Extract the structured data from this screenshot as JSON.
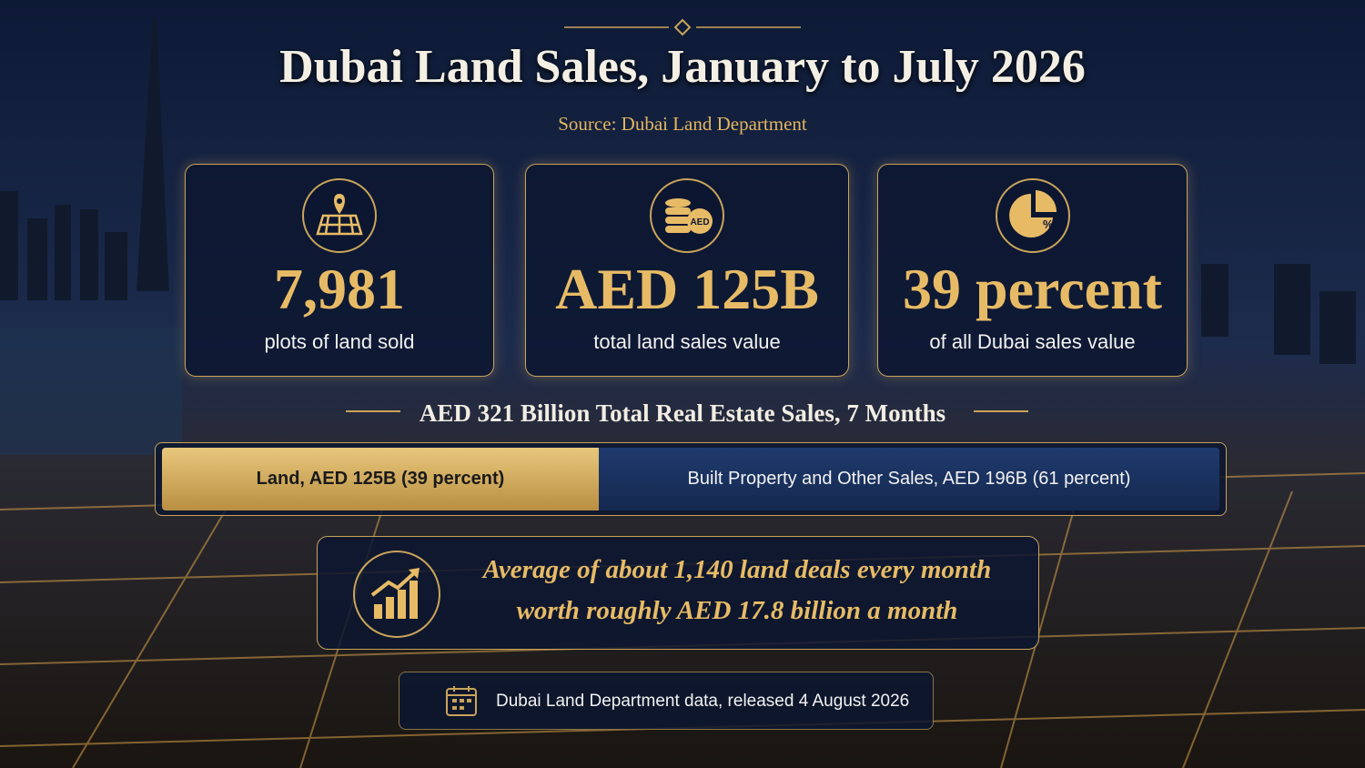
{
  "header": {
    "title": "Dubai Land Sales, January to July 2026",
    "source": "Source: Dubai Land Department"
  },
  "cards": [
    {
      "value": "7,981",
      "label": "plots of land sold"
    },
    {
      "value": "AED 125B",
      "label": "total land sales value"
    },
    {
      "value": "39 percent",
      "label": "of all Dubai sales value"
    }
  ],
  "breakdown": {
    "title": "AED 321 Billion Total Real Estate Sales, 7 Months",
    "segments": [
      "Land, AED 125B (39 percent)",
      "Built Property and Other Sales, AED 196B (61 percent)"
    ]
  },
  "average": {
    "lines": [
      "Average of about 1,140 land deals every month",
      "worth roughly AED 17.8 billion a month"
    ]
  },
  "footer": {
    "note": "Dubai Land Department data, released 4 August 2026"
  }
}
